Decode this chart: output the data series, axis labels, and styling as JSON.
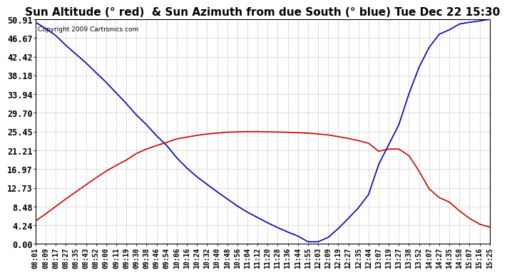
{
  "title": "Sun Altitude (° red)  & Sun Azimuth from due South (° blue) Tue Dec 22 15:30",
  "copyright_text": "Copyright 2009 Cartronics.com",
  "ymin": 0.0,
  "ymax": 50.91,
  "yticks": [
    0.0,
    4.24,
    8.48,
    12.73,
    16.97,
    21.21,
    25.45,
    29.7,
    33.94,
    38.18,
    42.42,
    46.67,
    50.91
  ],
  "ytick_labels": [
    "0.00",
    "4.24",
    "8.48",
    "12.73",
    "16.97",
    "21.21",
    "25.45",
    "29.70",
    "33.94",
    "38.18",
    "42.42",
    "46.67",
    "50.91"
  ],
  "xtick_labels": [
    "08:01",
    "08:09",
    "08:17",
    "08:27",
    "08:35",
    "08:43",
    "08:52",
    "09:00",
    "09:11",
    "09:19",
    "09:30",
    "09:38",
    "09:46",
    "09:54",
    "10:06",
    "10:16",
    "10:24",
    "10:32",
    "10:40",
    "10:48",
    "10:56",
    "11:04",
    "11:12",
    "11:20",
    "11:28",
    "11:36",
    "11:44",
    "11:55",
    "12:03",
    "12:09",
    "12:19",
    "12:27",
    "12:35",
    "12:44",
    "13:07",
    "13:19",
    "13:27",
    "13:38",
    "13:52",
    "14:07",
    "14:27",
    "14:35",
    "14:58",
    "15:07",
    "15:16",
    "15:25"
  ],
  "blue_y": [
    50.2,
    48.8,
    47.2,
    45.0,
    43.0,
    41.0,
    38.8,
    36.6,
    34.2,
    31.8,
    29.2,
    27.0,
    24.5,
    22.3,
    19.5,
    17.2,
    15.2,
    13.5,
    11.8,
    10.2,
    8.6,
    7.2,
    6.0,
    4.8,
    3.7,
    2.7,
    1.8,
    0.5,
    0.5,
    1.5,
    3.5,
    5.8,
    8.2,
    11.2,
    18.0,
    22.5,
    27.0,
    34.0,
    40.0,
    44.5,
    47.5,
    48.5,
    49.8,
    50.2,
    50.5,
    50.9
  ],
  "red_y": [
    5.2,
    6.8,
    8.5,
    10.2,
    11.8,
    13.4,
    15.0,
    16.5,
    17.8,
    19.0,
    20.5,
    21.5,
    22.3,
    23.0,
    23.8,
    24.2,
    24.6,
    24.9,
    25.1,
    25.3,
    25.4,
    25.45,
    25.45,
    25.4,
    25.35,
    25.3,
    25.2,
    25.1,
    24.9,
    24.7,
    24.3,
    23.9,
    23.4,
    22.8,
    21.0,
    21.5,
    21.5,
    20.0,
    16.5,
    12.5,
    10.5,
    9.5,
    7.5,
    5.8,
    4.5,
    3.8
  ],
  "blue_color": "#0000bb",
  "red_color": "#cc0000",
  "bg_color": "#ffffff",
  "grid_color": "#aaaaaa",
  "title_fontsize": 11,
  "label_fontsize": 8.5,
  "xlabel_fontsize": 7.0
}
